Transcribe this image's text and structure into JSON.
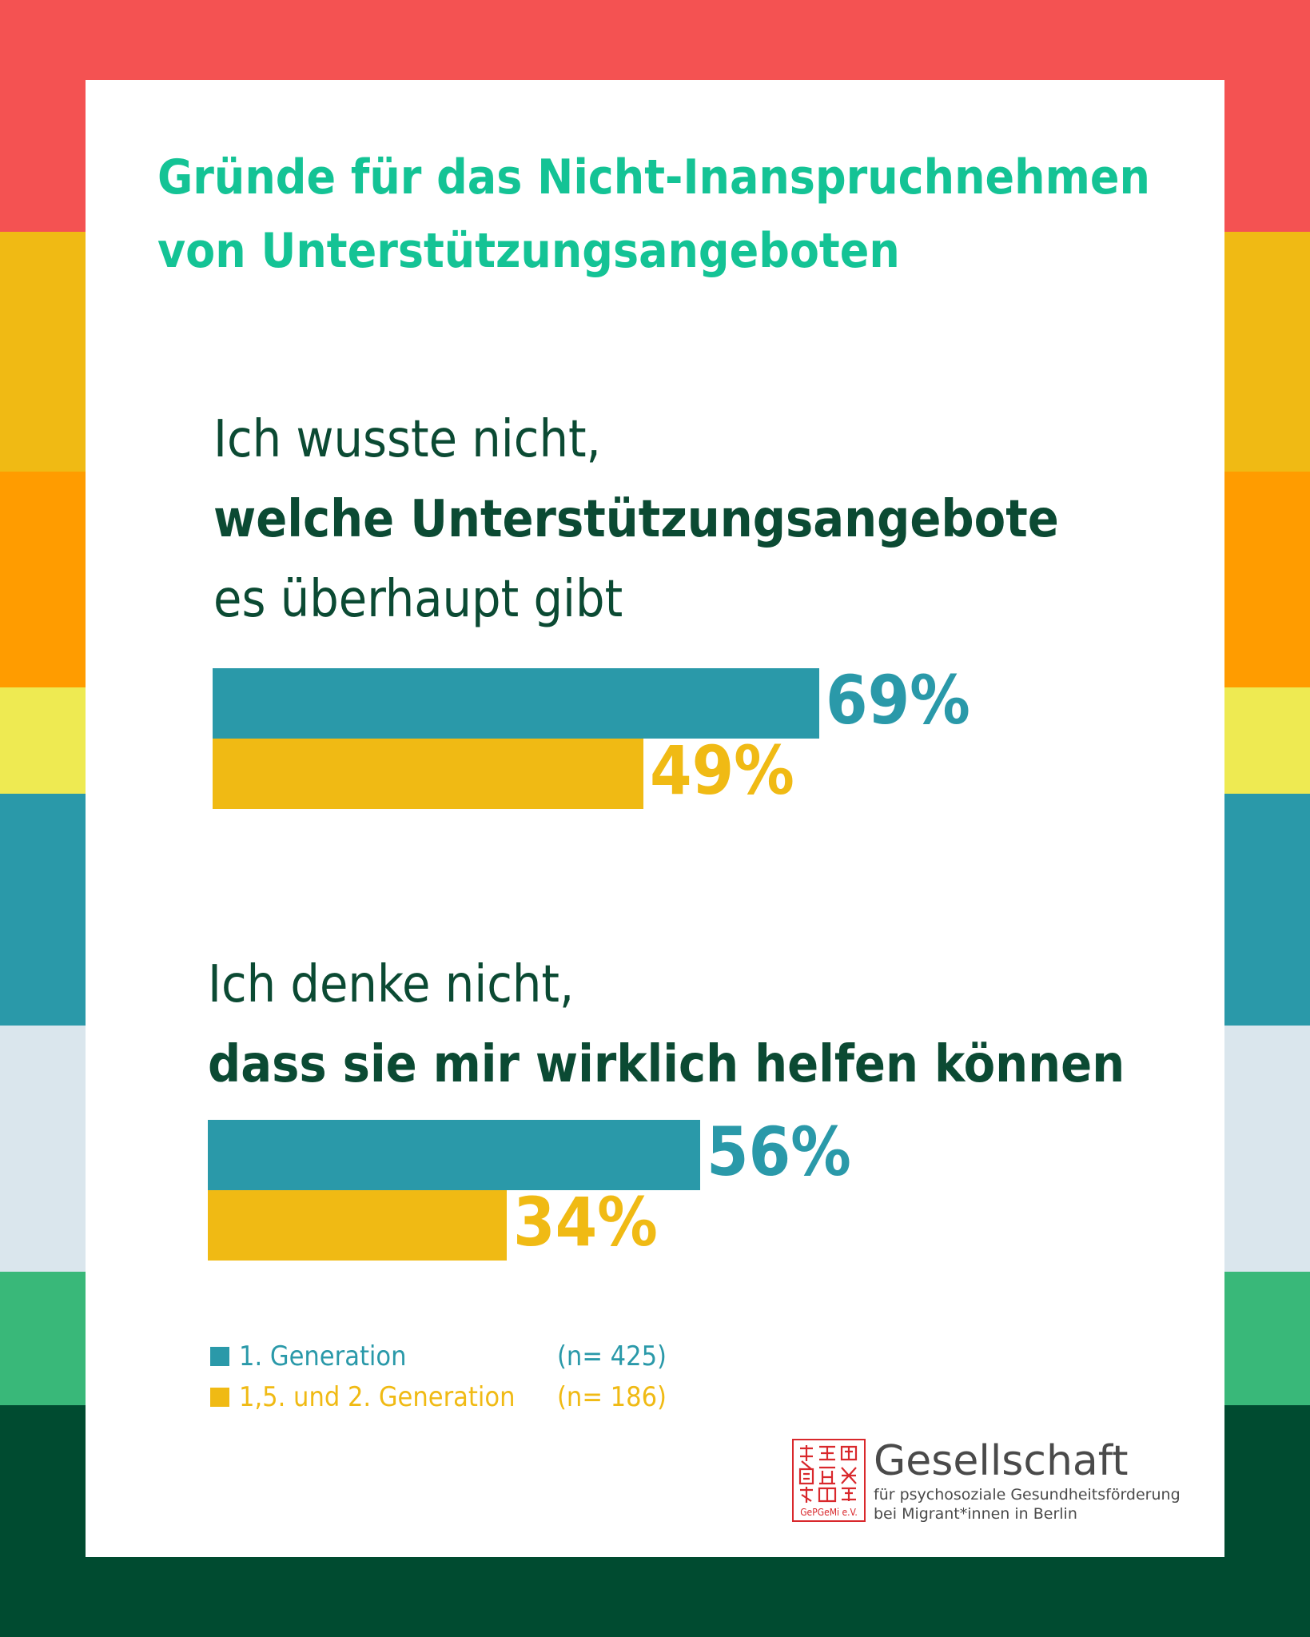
{
  "colors": {
    "background_stripes": [
      "#f45252",
      "#f0ba14",
      "#ff9c00",
      "#eeea52",
      "#2a99a9",
      "#dae6ed",
      "#39b879",
      "#004b30"
    ],
    "card": "#ffffff",
    "title": "#14c395",
    "question": "#0b4a33",
    "series_1": "#2a99a9",
    "series_2": "#f0ba14",
    "logo_red": "#d9282c",
    "logo_text": "#4a4a4a"
  },
  "title": "Gründe für das Nicht-Inanspruchnehmen von Unterstützungsangeboten",
  "questions": [
    {
      "line1": "Ich wusste nicht,",
      "line2_bold": "welche Unterstützungsangebote",
      "line3": "es überhaupt gibt"
    },
    {
      "line1": "Ich denke nicht,",
      "line2_bold": "dass sie mir wirklich helfen können"
    }
  ],
  "chart_data": {
    "type": "bar",
    "orientation": "horizontal",
    "value_unit": "%",
    "xlim": [
      0,
      100
    ],
    "categories": [
      "Ich wusste nicht, welche Unterstützungsangebote es überhaupt gibt",
      "Ich denke nicht, dass sie mir wirklich helfen können"
    ],
    "series": [
      {
        "name": "1. Generation",
        "n": "(n= 425)",
        "values": [
          69,
          56
        ],
        "color": "#2a99a9"
      },
      {
        "name": "1,5. und 2. Generation",
        "n": "(n= 186)",
        "values": [
          49,
          34
        ],
        "color": "#f0ba14"
      }
    ],
    "data_labels": [
      [
        "69%",
        "56%"
      ],
      [
        "49%",
        "34%"
      ]
    ]
  },
  "legend": [
    {
      "label": "1.  Generation",
      "n": "(n= 425)"
    },
    {
      "label": "1,5. und 2.  Generation",
      "n": "(n= 186)"
    }
  ],
  "logo": {
    "seal_text": "GePGeMi e.V.",
    "name": "Gesellschaft",
    "tagline_1": "für psychosoziale Gesundheitsförderung",
    "tagline_2": "bei Migrant*innen in Berlin"
  }
}
